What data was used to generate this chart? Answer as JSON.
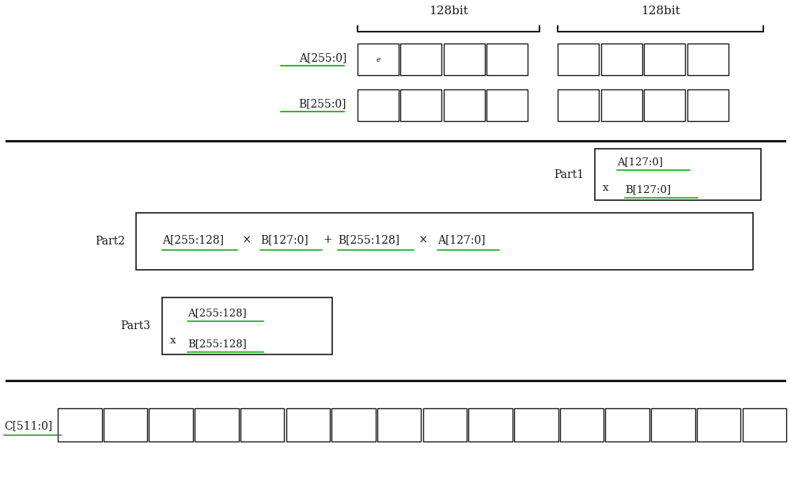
{
  "bg_color": "#ffffff",
  "text_color": "#1a1a1a",
  "underline_color": "#00aa00",
  "box_color": "#1a1a1a",
  "top_label_128bit_left": "128bit",
  "top_label_128bit_right": "128bit",
  "A_label": "A[255:0]",
  "B_label": "B[255:0]",
  "part1_label": "Part1",
  "part1_line1": "A[127:0]",
  "part1_line2": "B[127:0]",
  "part2_label": "Part2",
  "part3_label": "Part3",
  "part3_line1": "A[255:128]",
  "part3_line2": "B[255:128]",
  "C_label": "C[511:0]",
  "fig_width": 10.0,
  "fig_height": 6.13
}
